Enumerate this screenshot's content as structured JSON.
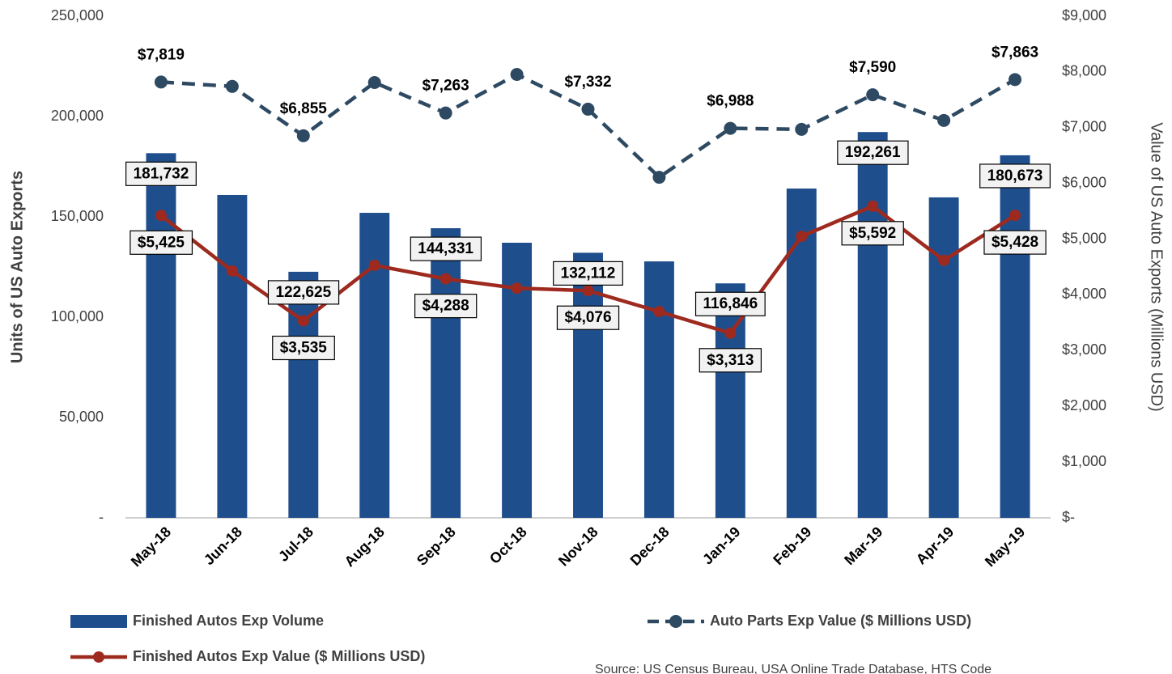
{
  "chart_data": {
    "type": "bar",
    "categories": [
      "May-18",
      "Jun-18",
      "Jul-18",
      "Aug-18",
      "Sep-18",
      "Oct-18",
      "Nov-18",
      "Dec-18",
      "Jan-19",
      "Feb-19",
      "Mar-19",
      "Apr-19",
      "May-19"
    ],
    "series": [
      {
        "name": "Finished Autos Exp Volume",
        "type": "bar",
        "axis": "y",
        "color": "#1f4e8c",
        "values": [
          181732,
          160900,
          122625,
          152000,
          144331,
          137100,
          132112,
          127800,
          116846,
          164100,
          192261,
          159700,
          180673
        ],
        "value_labels": [
          "181,732",
          null,
          "122,625",
          null,
          "144,331",
          null,
          "132,112",
          null,
          "116,846",
          null,
          "192,261",
          null,
          "180,673"
        ]
      },
      {
        "name": "Finished Autos Exp Value ($ Millions USD)",
        "type": "line",
        "axis": "y2",
        "color": "#9e2a1f",
        "dashed": false,
        "values": [
          5425,
          4430,
          3535,
          4530,
          4288,
          4120,
          4076,
          3700,
          3313,
          5050,
          5592,
          4620,
          5428
        ],
        "value_labels": [
          "$5,425",
          null,
          "$3,535",
          null,
          "$4,288",
          null,
          "$4,076",
          null,
          "$3,313",
          null,
          "$5,592",
          null,
          "$5,428"
        ]
      },
      {
        "name": "Auto Parts Exp Value ($ Millions USD)",
        "type": "line",
        "axis": "y2",
        "color": "#2e4a63",
        "dashed": true,
        "values": [
          7819,
          7740,
          6855,
          7810,
          7263,
          7955,
          7332,
          6110,
          6988,
          6970,
          7590,
          7130,
          7863
        ],
        "value_labels": [
          "$7,819",
          null,
          "$6,855",
          null,
          "$7,263",
          null,
          "$7,332",
          null,
          "$6,988",
          null,
          "$7,590",
          null,
          "$7,863"
        ]
      }
    ],
    "ylabel": "Units of US Auto Exports",
    "y2label": "Value of US Auto Exports (Millions USD)",
    "ylim": [
      0,
      250000
    ],
    "yticks": [
      {
        "value": 0,
        "label": "-"
      },
      {
        "value": 50000,
        "label": "50,000"
      },
      {
        "value": 100000,
        "label": "100,000"
      },
      {
        "value": 150000,
        "label": "150,000"
      },
      {
        "value": 200000,
        "label": "200,000"
      },
      {
        "value": 250000,
        "label": "250,000"
      }
    ],
    "y2lim": [
      0,
      9000
    ],
    "y2ticks": [
      {
        "value": 0,
        "label": "$-"
      },
      {
        "value": 1000,
        "label": "$1,000"
      },
      {
        "value": 2000,
        "label": "$2,000"
      },
      {
        "value": 3000,
        "label": "$3,000"
      },
      {
        "value": 4000,
        "label": "$4,000"
      },
      {
        "value": 5000,
        "label": "$5,000"
      },
      {
        "value": 6000,
        "label": "$6,000"
      },
      {
        "value": 7000,
        "label": "$7,000"
      },
      {
        "value": 8000,
        "label": "$8,000"
      },
      {
        "value": 9000,
        "label": "$9,000"
      }
    ],
    "grid": false,
    "source": "Source: US Census Bureau, USA Online Trade Database, HTS Code"
  }
}
